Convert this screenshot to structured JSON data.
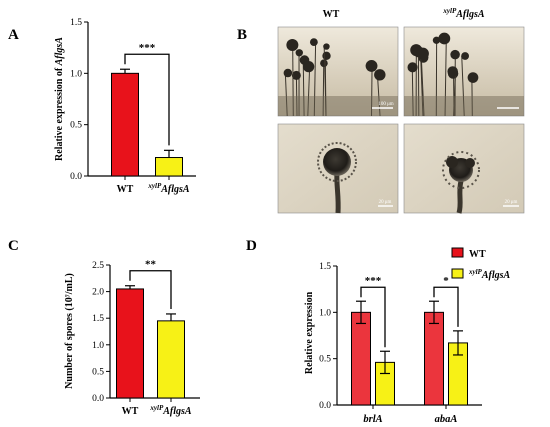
{
  "panels": {
    "A": "A",
    "B": "B",
    "C": "C",
    "D": "D"
  },
  "colors": {
    "wt": "#e8121b",
    "mutant": "#f7f116",
    "axis": "#000000"
  },
  "micrographs": {
    "columns": [
      "WT",
      "xylP",
      "AflgsA"
    ],
    "wt_label": "WT",
    "mut_sup": "xylP",
    "mut_main": "AflgsA",
    "scale_top": "100 μm",
    "scale_bottom": "20 μm"
  },
  "chart_data": [
    {
      "panel": "A",
      "type": "bar",
      "categories": [
        "WT",
        "xylP AflgsA"
      ],
      "category_labels": [
        {
          "main": "WT",
          "sup": ""
        },
        {
          "main": "AflgsA",
          "sup": "xylP"
        }
      ],
      "values": [
        1.0,
        0.18
      ],
      "errors": [
        0.04,
        0.07
      ],
      "ylabel_prefix": "Relative expression of ",
      "ylabel_gene": "AflgsA",
      "ylim": [
        0,
        1.5
      ],
      "yticks": [
        "0.0",
        "0.5",
        "1.0",
        "1.5"
      ],
      "significance": [
        {
          "between": [
            0,
            1
          ],
          "label": "***"
        }
      ]
    },
    {
      "panel": "C",
      "type": "bar",
      "categories": [
        "WT",
        "xylP AflgsA"
      ],
      "category_labels": [
        {
          "main": "WT",
          "sup": ""
        },
        {
          "main": "AflgsA",
          "sup": "xylP"
        }
      ],
      "values": [
        2.05,
        1.45
      ],
      "errors": [
        0.06,
        0.13
      ],
      "ylabel": "Number of spores (10⁷/mL)",
      "ylim": [
        0,
        2.5
      ],
      "yticks": [
        "0.0",
        "0.5",
        "1.0",
        "1.5",
        "2.0",
        "2.5"
      ],
      "significance": [
        {
          "between": [
            0,
            1
          ],
          "label": "**"
        }
      ]
    },
    {
      "panel": "D",
      "type": "bar",
      "categories": [
        "brlA",
        "abaA"
      ],
      "series": [
        {
          "name": "WT",
          "values": [
            1.0,
            1.0
          ],
          "errors": [
            0.12,
            0.12
          ]
        },
        {
          "name": "xylP AflgsA",
          "values": [
            0.46,
            0.67
          ],
          "errors": [
            0.12,
            0.13
          ]
        }
      ],
      "legend": [
        {
          "main": "WT",
          "sup": ""
        },
        {
          "main": "AflgsA",
          "sup": "xylP"
        }
      ],
      "ylabel": "Relative expression",
      "ylim": [
        0,
        1.5
      ],
      "yticks": [
        "0.0",
        "0.5",
        "1.0",
        "1.5"
      ],
      "legend_position": "top-right",
      "significance": [
        {
          "category": 0,
          "label": "***"
        },
        {
          "category": 1,
          "label": "*"
        }
      ]
    }
  ]
}
